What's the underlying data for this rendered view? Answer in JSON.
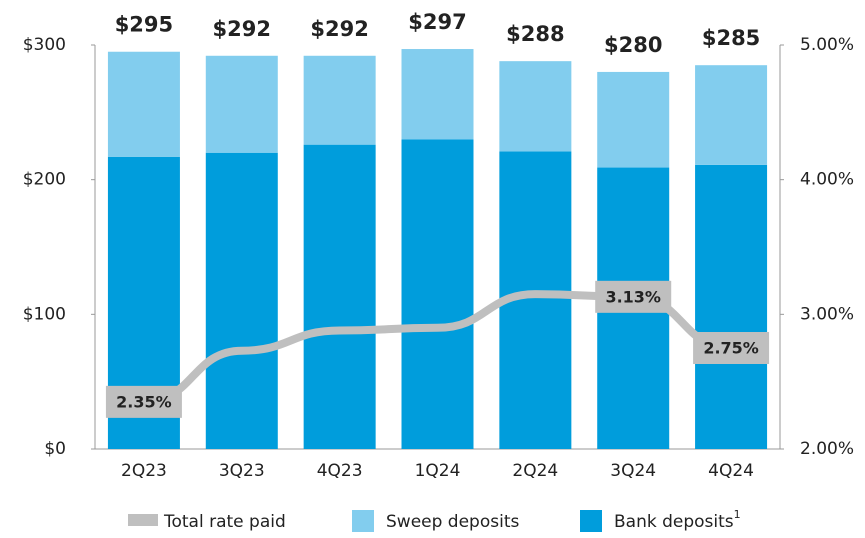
{
  "chart_data": {
    "type": "stacked-bar-line",
    "categories": [
      "2Q23",
      "3Q23",
      "4Q23",
      "1Q24",
      "2Q24",
      "3Q24",
      "4Q24"
    ],
    "series": [
      {
        "name": "Bank deposits",
        "color": "#009ddc",
        "values": [
          217,
          220,
          226,
          230,
          221,
          209,
          211
        ]
      },
      {
        "name": "Sweep deposits",
        "color": "#82cdee",
        "values": [
          78,
          72,
          66,
          67,
          67,
          71,
          74
        ]
      },
      {
        "name": "Total rate paid",
        "color": "#bfbfbf",
        "axis": "y2",
        "values": [
          2.35,
          2.73,
          2.88,
          2.9,
          3.15,
          3.13,
          2.75
        ],
        "value_labels": [
          "2.35%",
          null,
          null,
          null,
          null,
          "3.13%",
          "2.75%"
        ]
      }
    ],
    "totals": [
      295,
      292,
      292,
      297,
      288,
      280,
      285
    ],
    "totals_labels": [
      "$295",
      "$292",
      "$292",
      "$297",
      "$288",
      "$280",
      "$285"
    ],
    "footnote_marker": "1",
    "ylim": [
      0,
      300
    ],
    "yticks": [
      {
        "value": 0,
        "label": "$0"
      },
      {
        "value": 100,
        "label": "$100"
      },
      {
        "value": 200,
        "label": "$200"
      },
      {
        "value": 300,
        "label": "$300"
      }
    ],
    "y2lim": [
      2,
      5
    ],
    "y2ticks": [
      {
        "value": 2,
        "label": "2.00%"
      },
      {
        "value": 3,
        "label": "3.00%"
      },
      {
        "value": 4,
        "label": "4.00%"
      },
      {
        "value": 5,
        "label": "5.00%"
      }
    ],
    "legend": "bottom"
  }
}
